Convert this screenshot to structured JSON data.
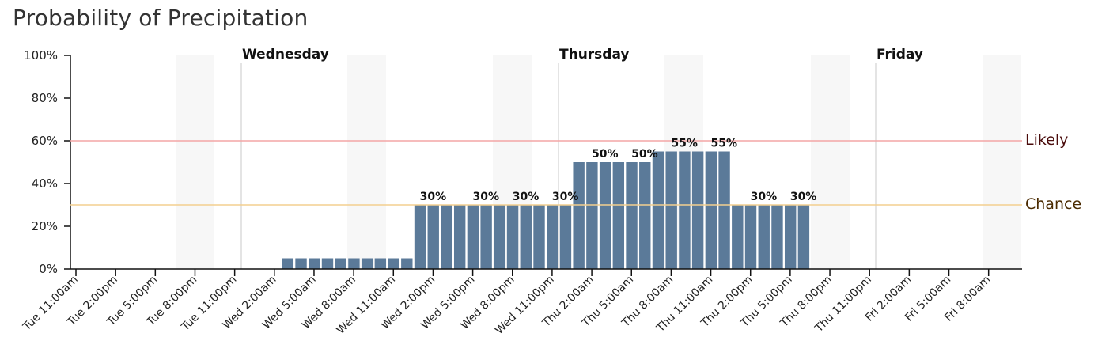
{
  "title": "Probability of Precipitation",
  "colors": {
    "bar": "#5b7a99",
    "likely": "#f4a6a6",
    "chance": "#f3cf8f",
    "likely_text": "#4a0c0c",
    "chance_text": "#4a2a00",
    "night_shade": "#f7f7f7"
  },
  "chart_data": {
    "type": "bar",
    "ylim": [
      0,
      100
    ],
    "yticks": [
      "0%",
      "20%",
      "40%",
      "60%",
      "80%",
      "100%"
    ],
    "xtick_labels": [
      "Tue 11:00am",
      "Tue 2:00pm",
      "Tue 5:00pm",
      "Tue 8:00pm",
      "Tue 11:00pm",
      "Wed 2:00am",
      "Wed 5:00am",
      "Wed 8:00am",
      "Wed 11:00am",
      "Wed 2:00pm",
      "Wed 5:00pm",
      "Wed 8:00pm",
      "Wed 11:00pm",
      "Thu 2:00am",
      "Thu 5:00am",
      "Thu 8:00am",
      "Thu 11:00am",
      "Thu 2:00pm",
      "Thu 5:00pm",
      "Thu 8:00pm",
      "Thu 11:00pm",
      "Fri 2:00am",
      "Fri 5:00am",
      "Fri 8:00am"
    ],
    "day_labels": [
      "Wednesday",
      "Thursday",
      "Friday"
    ],
    "reference_lines": [
      {
        "label": "Likely",
        "value": 60
      },
      {
        "label": "Chance",
        "value": 30
      }
    ],
    "values": [
      0,
      0,
      0,
      0,
      0,
      0,
      0,
      0,
      0,
      0,
      0,
      0,
      0,
      0,
      0,
      0,
      5,
      5,
      5,
      5,
      5,
      5,
      5,
      5,
      5,
      5,
      30,
      30,
      30,
      30,
      30,
      30,
      30,
      30,
      30,
      30,
      30,
      30,
      50,
      50,
      50,
      50,
      50,
      50,
      55,
      55,
      55,
      55,
      55,
      55,
      30,
      30,
      30,
      30,
      30,
      30,
      0,
      0,
      0,
      0,
      0,
      0,
      0,
      0,
      0,
      0,
      0,
      0,
      0,
      0,
      0,
      0
    ],
    "data_labels": [
      {
        "index": 27,
        "text": "30%"
      },
      {
        "index": 31,
        "text": "30%"
      },
      {
        "index": 34,
        "text": "30%"
      },
      {
        "index": 37,
        "text": "30%"
      },
      {
        "index": 40,
        "text": "50%"
      },
      {
        "index": 43,
        "text": "50%"
      },
      {
        "index": 46,
        "text": "55%"
      },
      {
        "index": 49,
        "text": "55%"
      },
      {
        "index": 52,
        "text": "30%"
      },
      {
        "index": 55,
        "text": "30%"
      }
    ]
  }
}
